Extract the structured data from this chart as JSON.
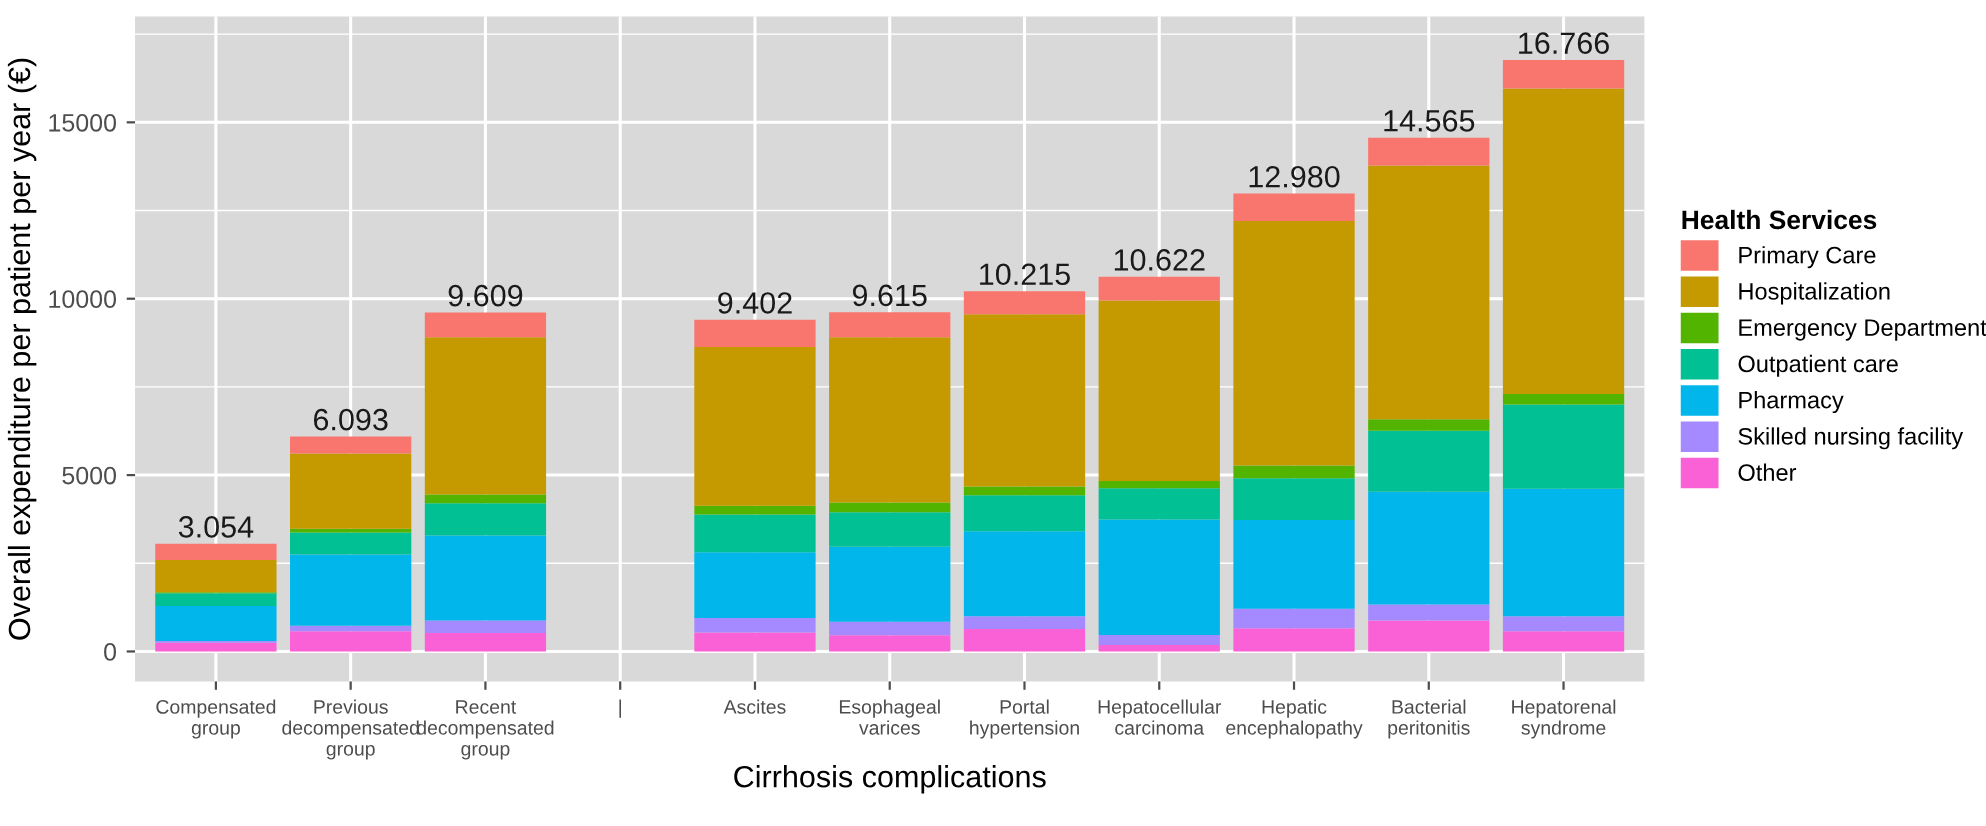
{
  "chart_data": {
    "type": "bar",
    "stacked": true,
    "xlabel": "Cirrhosis complications",
    "ylabel": "Overall expenditure per patient per year (€)",
    "legend_title": "Health Services",
    "categories": [
      "Compensated\ngroup",
      "Previous\ndecompensated\ngroup",
      "Recent\ndecompensated\ngroup",
      "|",
      "Ascites",
      "Esophageal\nvarices",
      "Portal\nhypertension",
      "Hepatocellular\ncarcinoma",
      "Hepatic\nencephalopathy",
      "Bacterial\nperitonitis",
      "Hepatorenal\nsyndrome"
    ],
    "series": [
      {
        "name": "Other",
        "color": "#fb61d7",
        "values": [
          250,
          570,
          520,
          null,
          540,
          460,
          640,
          180,
          660,
          880,
          570
        ]
      },
      {
        "name": "Skilled nursing facility",
        "color": "#a58aff",
        "values": [
          50,
          160,
          360,
          null,
          410,
          380,
          360,
          290,
          550,
          450,
          430
        ]
      },
      {
        "name": "Pharmacy",
        "color": "#00b6eb",
        "values": [
          990,
          2020,
          2410,
          null,
          1860,
          2130,
          2410,
          3270,
          2520,
          3200,
          3610
        ]
      },
      {
        "name": "Outpatient care",
        "color": "#00c094",
        "values": [
          360,
          620,
          910,
          null,
          1070,
          980,
          1020,
          890,
          1180,
          1730,
          2390
        ]
      },
      {
        "name": "Emergency Department",
        "color": "#53b400",
        "values": [
          30,
          110,
          250,
          null,
          250,
          270,
          250,
          200,
          360,
          320,
          300
        ]
      },
      {
        "name": "Hospitalization",
        "color": "#c49a00",
        "values": [
          910,
          2130,
          4460,
          null,
          4500,
          4690,
          4880,
          5120,
          6930,
          7200,
          8660
        ]
      },
      {
        "name": "Primary Care",
        "color": "#f8766d",
        "values": [
          464,
          483,
          699,
          null,
          772,
          705,
          655,
          672,
          780,
          785,
          806
        ]
      }
    ],
    "totals": [
      "3.054",
      "6.093",
      "9.609",
      null,
      "9.402",
      "9.615",
      "10.215",
      "10.622",
      "12.980",
      "14.565",
      "16.766"
    ],
    "ylim": [
      -850,
      18000
    ],
    "yticks": [
      0,
      5000,
      10000,
      15000
    ],
    "grid": true,
    "legend": "right"
  }
}
